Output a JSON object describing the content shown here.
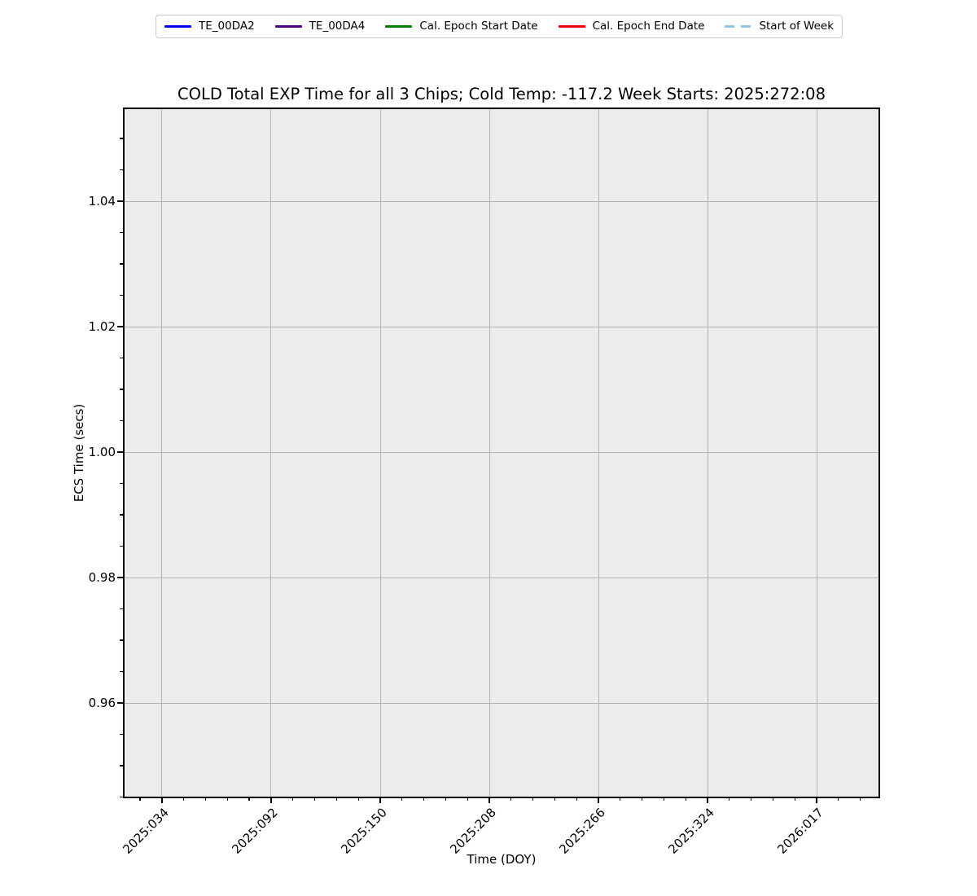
{
  "chart_data": {
    "type": "line",
    "title": "COLD Total EXP Time for all 3 Chips; Cold Temp: -117.2 Week Starts: 2025:272:08",
    "xlabel": "Time (DOY)",
    "ylabel": "ECS Time (secs)",
    "x_tick_labels": [
      "2025:034",
      "2025:092",
      "2025:150",
      "2025:208",
      "2025:266",
      "2025:324",
      "2026:017"
    ],
    "y_ticks": [
      0.96,
      0.98,
      1.0,
      1.02,
      1.04
    ],
    "ylim": [
      0.94494,
      1.05481
    ],
    "y_minor_step": 0.005,
    "x_axis_layout": {
      "first_tick_frac": 0.050646,
      "major_step_frac": 0.144397,
      "minors_per_major": 5
    },
    "grid": true,
    "legend_position": "top-center-above-axes",
    "axes_background": "#ececec",
    "grid_color": "#b3b3b3",
    "series": [
      {
        "name": "TE_00DA2",
        "color": "#0000ee",
        "style": "solid",
        "values": []
      },
      {
        "name": "TE_00DA4",
        "color": "#4b0082",
        "style": "solid",
        "values": []
      },
      {
        "name": "Cal. Epoch Start Date",
        "color": "#008000",
        "style": "solid",
        "values": []
      },
      {
        "name": "Cal. Epoch End Date",
        "color": "#ee0000",
        "style": "solid",
        "values": []
      },
      {
        "name": "Start of Week",
        "color": "#92c5e0",
        "style": "dashed",
        "values": []
      }
    ]
  }
}
